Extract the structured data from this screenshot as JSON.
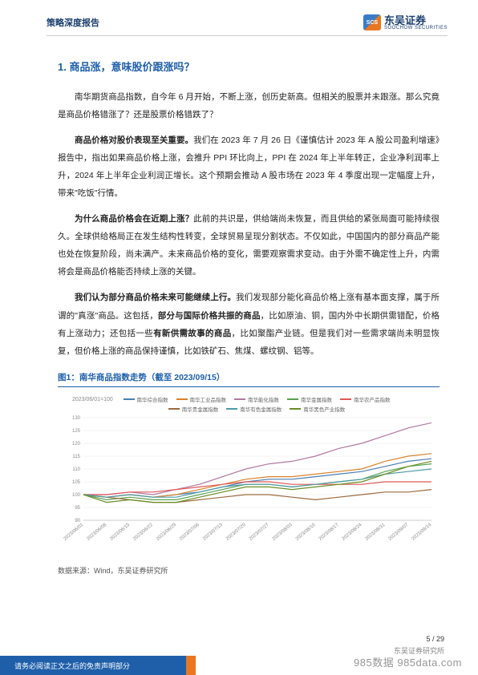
{
  "header": {
    "title": "策略深度报告",
    "logo_cn": "东吴证券",
    "logo_en": "SOOCHOW SECURITIES",
    "logo_mark": "SCS"
  },
  "section": {
    "number": "1.",
    "title": "商品涨，意味股价跟涨吗？"
  },
  "paragraphs": {
    "p1": "南华期货商品指数，自今年 6 月开始，不断上涨，创历史新高。但相关的股票并未跟涨。那么究竟是商品价格错涨了？还是股票价格错跌了？",
    "p2_lead": "商品价格对股价表现至关重要。",
    "p2_body": "我们在 2023 年 7 月 26 日《谨慎估计 2023 年 A 股公司盈利增速》报告中，指出如果商品价格上涨，会推升 PPI 环比向上，PPI 在 2024 年上半年转正，企业净利润率上升，2024 年上半年企业利润正增长。这个预期会推动 A 股市场在 2023 年 4 季度出现一定幅度上升，带来\"吃饭\"行情。",
    "p3_lead": "为什么商品价格会在近期上涨？",
    "p3_body": "此前的共识是，供给端尚未恢复，而且供给的紧张局面可能持续很久。全球供给格局正在发生结构性转变，全球贸易呈现分割状态。不仅如此，中国国内的部分商品产能也处在恢复阶段，尚未满产。未来商品价格的变化，需要观察需求变动。由于外需不确定性上升，内需将会是商品价格能否持续上涨的关键。",
    "p4_lead": "我们认为部分商品价格未来可能继续上行。",
    "p4_body_a": "我们发现部分能化商品价格上涨有基本面支撑，属于所谓的\"真涨\"商品。这包括，",
    "p4_bold_a": "部分与国际价格共振的商品",
    "p4_body_b": "，比如原油、铜，国内外中长期供需错配，价格有上涨动力；还包括一些",
    "p4_bold_b": "有新供需故事的商品",
    "p4_body_c": "，比如聚酯产业链。但是我们对一些需求端尚未明显恢复，但价格上涨的商品保持谨慎，比如铁矿石、焦煤、螺纹钢、铝等。"
  },
  "figure": {
    "title": "图1：南华商品指数走势（截至 2023/09/15）",
    "baseline_note": "2023/06/01=100",
    "source": "数据来源：Wind，东吴证券研究所",
    "legend": [
      {
        "label": "南华综合指数",
        "color": "#4a7fb5"
      },
      {
        "label": "南华工业品指数",
        "color": "#d9822b"
      },
      {
        "label": "南华能化指数",
        "color": "#b07aa1"
      },
      {
        "label": "南华金属指数",
        "color": "#59a14f"
      },
      {
        "label": "南华农产品指数",
        "color": "#e15759"
      },
      {
        "label": "南华贵金属指数",
        "color": "#9c6a3f"
      },
      {
        "label": "南华有色金属指数",
        "color": "#4e9ba3"
      },
      {
        "label": "南华黑色产业指数",
        "color": "#6b8e23"
      }
    ],
    "chart": {
      "type": "line",
      "ylim": [
        90,
        130
      ],
      "ytick_step": 5,
      "yticks": [
        90,
        95,
        100,
        105,
        110,
        115,
        120,
        125,
        130
      ],
      "x_labels": [
        "2023/06/01",
        "2023/06/08",
        "2023/06/15",
        "2023/06/22",
        "2023/06/29",
        "2023/07/06",
        "2023/07/13",
        "2023/07/20",
        "2023/07/27",
        "2023/08/03",
        "2023/08/10",
        "2023/08/17",
        "2023/08/24",
        "2023/08/31",
        "2023/09/07",
        "2023/09/14"
      ],
      "background_color": "#ffffff",
      "grid_color": "#e8e8e8",
      "axis_color": "#cccccc",
      "label_fontsize": 6,
      "line_width": 1.2,
      "series": [
        {
          "name": "南华综合指数",
          "color": "#4a7fb5",
          "values": [
            100,
            99,
            100,
            99,
            100,
            101,
            103,
            105,
            106,
            106,
            107,
            108,
            109,
            111,
            113,
            114
          ]
        },
        {
          "name": "南华工业品指数",
          "color": "#d9822b",
          "values": [
            100,
            99,
            100,
            99,
            100,
            102,
            104,
            106,
            107,
            107,
            108,
            109,
            110,
            113,
            115,
            116
          ]
        },
        {
          "name": "南华能化指数",
          "color": "#b07aa1",
          "values": [
            100,
            100,
            101,
            100,
            102,
            104,
            107,
            110,
            112,
            113,
            115,
            118,
            120,
            123,
            126,
            128
          ]
        },
        {
          "name": "南华金属指数",
          "color": "#59a14f",
          "values": [
            100,
            98,
            99,
            98,
            98,
            100,
            102,
            104,
            104,
            103,
            104,
            105,
            106,
            109,
            111,
            112
          ]
        },
        {
          "name": "南华农产品指数",
          "color": "#e15759",
          "values": [
            100,
            100,
            101,
            101,
            102,
            103,
            104,
            105,
            105,
            104,
            104,
            104,
            104,
            105,
            105,
            105
          ]
        },
        {
          "name": "南华贵金属指数",
          "color": "#9c6a3f",
          "values": [
            100,
            99,
            98,
            97,
            97,
            98,
            99,
            100,
            100,
            99,
            98,
            99,
            100,
            101,
            101,
            102
          ]
        },
        {
          "name": "南华有色金属指数",
          "color": "#4e9ba3",
          "values": [
            100,
            99,
            100,
            99,
            99,
            101,
            103,
            104,
            104,
            103,
            104,
            105,
            106,
            108,
            109,
            110
          ]
        },
        {
          "name": "南华黑色产业指数",
          "color": "#6b8e23",
          "values": [
            100,
            97,
            98,
            97,
            97,
            99,
            101,
            103,
            103,
            102,
            103,
            104,
            105,
            108,
            111,
            113
          ]
        }
      ]
    }
  },
  "footer": {
    "disclaimer": "请务必阅读正文之后的免责声明部分",
    "institute": "东吴证券研究所",
    "page": "5 / 29",
    "watermark": "985数据 985data.com"
  }
}
